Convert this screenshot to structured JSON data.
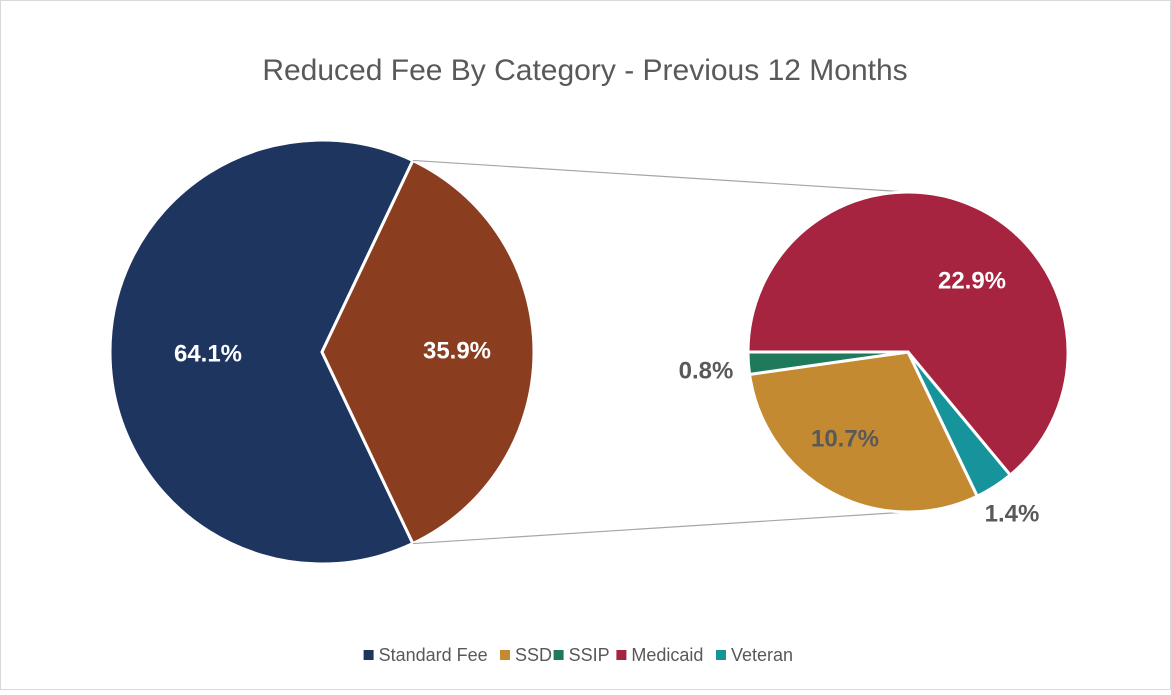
{
  "chart_data": {
    "type": "pie_of_pie",
    "title": "Reduced Fee By Category - Previous 12 Months",
    "categories": [
      "Standard Fee",
      "SSD",
      "SSIP",
      "Medicaid",
      "Veteran"
    ],
    "values": [
      64.1,
      10.7,
      0.8,
      22.9,
      1.4
    ],
    "value_labels": [
      "64.1%",
      "10.7%",
      "0.8%",
      "22.9%",
      "1.4%"
    ],
    "colors": [
      "#1e3560",
      "#c48a32",
      "#1e7a5a",
      "#a6243f",
      "#17949b"
    ],
    "other_value": 35.9,
    "other_value_label": "35.9%",
    "other_color": "#8b3d1f",
    "legend": "bottom"
  }
}
